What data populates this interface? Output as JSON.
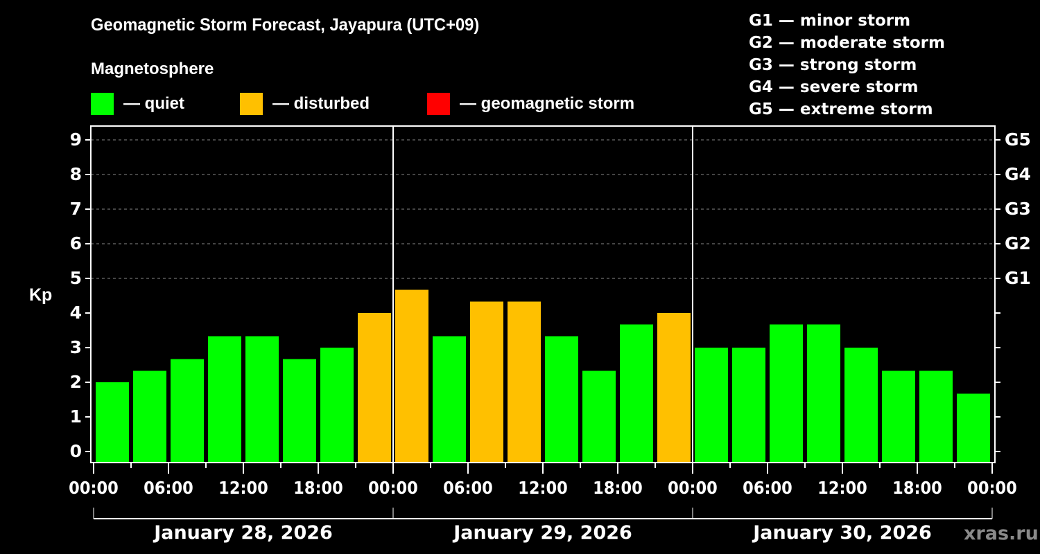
{
  "header": {
    "title": "Geomagnetic Storm Forecast, Jayapura (UTC+09)",
    "subtitle": "Magnetosphere"
  },
  "legend": [
    {
      "label": "— quiet",
      "color": "#00ff00"
    },
    {
      "label": "— disturbed",
      "color": "#ffc000"
    },
    {
      "label": "— geomagnetic storm",
      "color": "#ff0000"
    }
  ],
  "storm_scale": [
    "G1 — minor storm",
    "G2 — moderate storm",
    "G3 — strong storm",
    "G4 — severe storm",
    "G5 — extreme storm"
  ],
  "axis": {
    "ylabel": "Kp",
    "yticks": [
      "0",
      "1",
      "2",
      "3",
      "4",
      "5",
      "6",
      "7",
      "8",
      "9"
    ],
    "gticks": [
      {
        "label": "G1",
        "kp": 5
      },
      {
        "label": "G2",
        "kp": 6
      },
      {
        "label": "G3",
        "kp": 7
      },
      {
        "label": "G4",
        "kp": 8
      },
      {
        "label": "G5",
        "kp": 9
      }
    ],
    "xticks": [
      "00:00",
      "06:00",
      "12:00",
      "18:00",
      "00:00",
      "06:00",
      "12:00",
      "18:00",
      "00:00",
      "06:00",
      "12:00",
      "18:00",
      "00:00"
    ],
    "dates": [
      "January 28, 2026",
      "January 29, 2026",
      "January 30, 2026"
    ]
  },
  "watermark": "xras.ru",
  "colors": {
    "quiet": "#00ff00",
    "disturbed": "#ffc000",
    "storm": "#ff0000",
    "background": "#000000",
    "grid": "#888888"
  },
  "chart_data": {
    "type": "bar",
    "title": "Geomagnetic Storm Forecast, Jayapura (UTC+09)",
    "xlabel": "",
    "ylabel": "Kp",
    "ylim": [
      0,
      9
    ],
    "grid": "dashed horizontal at Kp 5–9",
    "legend_position": "top",
    "categories": [
      "Jan 28 00:00",
      "Jan 28 03:00",
      "Jan 28 06:00",
      "Jan 28 09:00",
      "Jan 28 12:00",
      "Jan 28 15:00",
      "Jan 28 18:00",
      "Jan 28 21:00",
      "Jan 29 00:00",
      "Jan 29 03:00",
      "Jan 29 06:00",
      "Jan 29 09:00",
      "Jan 29 12:00",
      "Jan 29 15:00",
      "Jan 29 18:00",
      "Jan 29 21:00",
      "Jan 30 00:00",
      "Jan 30 03:00",
      "Jan 30 06:00",
      "Jan 30 09:00",
      "Jan 30 12:00",
      "Jan 30 15:00",
      "Jan 30 18:00",
      "Jan 30 21:00"
    ],
    "values": [
      2.0,
      2.33,
      2.67,
      3.33,
      3.33,
      2.67,
      3.0,
      4.0,
      4.67,
      3.33,
      4.33,
      4.33,
      3.33,
      2.33,
      3.67,
      4.0,
      3.0,
      3.0,
      3.67,
      3.67,
      3.0,
      2.33,
      2.33,
      1.67
    ],
    "status": [
      "quiet",
      "quiet",
      "quiet",
      "quiet",
      "quiet",
      "quiet",
      "quiet",
      "disturbed",
      "disturbed",
      "quiet",
      "disturbed",
      "disturbed",
      "quiet",
      "quiet",
      "quiet",
      "disturbed",
      "quiet",
      "quiet",
      "quiet",
      "quiet",
      "quiet",
      "quiet",
      "quiet",
      "quiet"
    ]
  }
}
